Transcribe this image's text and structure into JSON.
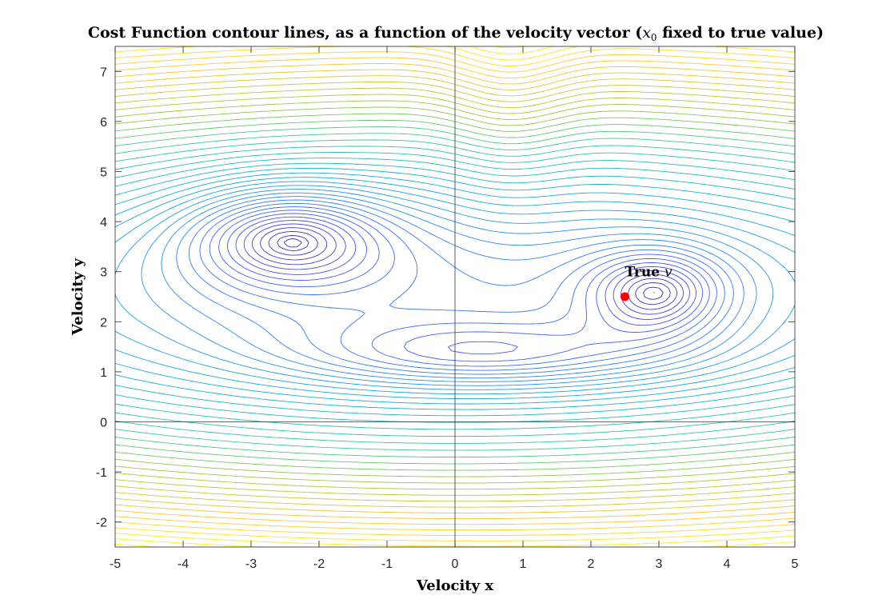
{
  "chart_data": {
    "type": "contour",
    "title": {
      "prefix": "Cost Function contour lines, as a function of the velocity vector (",
      "var": "x",
      "sub": "0",
      "suffix": " fixed to true value)"
    },
    "xlabel": "Velocity x",
    "ylabel": "Velocity y",
    "xlim": [
      -5,
      5
    ],
    "ylim": [
      -2.5,
      7.5
    ],
    "xticks": [
      -5,
      -4,
      -3,
      -2,
      -1,
      0,
      1,
      2,
      3,
      4,
      5
    ],
    "yticks": [
      -2,
      -1,
      0,
      1,
      2,
      3,
      4,
      5,
      6,
      7
    ],
    "xtick_labels": [
      "-5",
      "-4",
      "-3",
      "-2",
      "-1",
      "0",
      "1",
      "2",
      "3",
      "4",
      "5"
    ],
    "ytick_labels": [
      "-2",
      "-1",
      "0",
      "1",
      "2",
      "3",
      "4",
      "5",
      "6",
      "7"
    ],
    "zero_lines": {
      "x": 0,
      "y": 0
    },
    "colormap": "parula",
    "level_count": 44,
    "grid": false,
    "true_point": {
      "x": 2.5,
      "y": 2.5,
      "color": "#ff0000"
    },
    "annotation": {
      "text_bold": "True ",
      "text_italic": "v",
      "x": 2.5,
      "y": 3.0
    }
  }
}
